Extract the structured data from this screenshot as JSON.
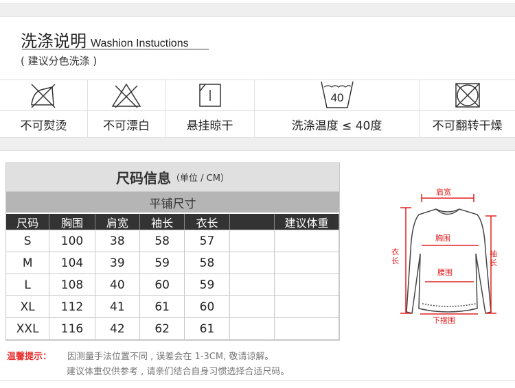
{
  "care": {
    "title": "洗涤说明",
    "title_en": "Washion Instuctions",
    "subtitle": "( 建议分色洗涤 )",
    "items": [
      {
        "icon": "no-iron-icon",
        "label": "不可熨烫"
      },
      {
        "icon": "no-bleach-icon",
        "label": "不可漂白"
      },
      {
        "icon": "hang-dry-icon",
        "label": "悬挂晾干"
      },
      {
        "icon": "wash-40-icon",
        "label": "洗涤温度 ≤ 40度",
        "icon_text": "40"
      },
      {
        "icon": "no-tumble-dry-icon",
        "label": "不可翻转干燥"
      }
    ]
  },
  "size": {
    "title": "尺码信息",
    "unit": "（单位 / CM）",
    "subtitle": "平铺尺寸",
    "headers": [
      "尺码",
      "胸围",
      "肩宽",
      "袖长",
      "衣长",
      "",
      "建议体重"
    ],
    "rows": [
      [
        "S",
        "100",
        "38",
        "58",
        "57",
        "",
        ""
      ],
      [
        "M",
        "104",
        "39",
        "59",
        "58",
        "",
        ""
      ],
      [
        "L",
        "108",
        "40",
        "60",
        "59",
        "",
        ""
      ],
      [
        "XL",
        "112",
        "41",
        "61",
        "60",
        "",
        ""
      ],
      [
        "XXL",
        "116",
        "42",
        "62",
        "61",
        "",
        ""
      ]
    ],
    "header_bg": "#333333",
    "title_bg": "#e0e0e0",
    "subtitle_bg": "#b5b5b5"
  },
  "diagram": {
    "shoulder": "肩宽",
    "chest": "胸围",
    "waist": "腰围",
    "hem": "下摆围",
    "length": "衣长",
    "sleeve": "袖长",
    "accent": "#e02020"
  },
  "notes": {
    "label": "温馨提示：",
    "line1": "因测量手法位置不同 , 误差会在 1-3CM, 敬请谅解。",
    "line2": "建议体重仅供参考 , 请亲们结合自身习惯选择合适尺码。"
  }
}
